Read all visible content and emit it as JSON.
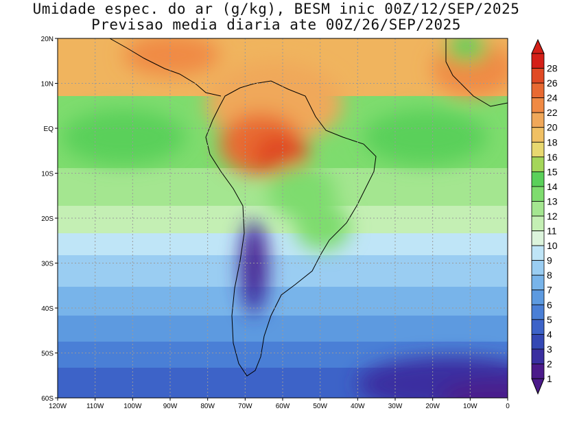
{
  "title": {
    "line1": "Umidade espec. do ar (g/kg), BESM inic 00Z/12/SEP/2025",
    "line2": "Previsao media diaria ate 00Z/26/SEP/2025"
  },
  "map": {
    "lat_labels": [
      "20N",
      "10N",
      "EQ",
      "10S",
      "20S",
      "30S",
      "40S",
      "50S",
      "60S"
    ],
    "lon_labels": [
      "120W",
      "110W",
      "100W",
      "90W",
      "80W",
      "70W",
      "60W",
      "50W",
      "40W",
      "30W",
      "20W",
      "10W",
      "0"
    ],
    "lat_range": [
      -60,
      20
    ],
    "lon_range": [
      -120,
      0
    ],
    "grid": true
  },
  "colorbar": {
    "labels": [
      "1",
      "2",
      "3",
      "4",
      "5",
      "6",
      "7",
      "8",
      "9",
      "10",
      "11",
      "12",
      "13",
      "14",
      "15",
      "16",
      "18",
      "20",
      "22",
      "24",
      "26",
      "28"
    ],
    "colors": [
      "#4b1a8a",
      "#3a2fa0",
      "#3448b4",
      "#3d63c8",
      "#4a7fd6",
      "#5d9ae0",
      "#78b4ea",
      "#9acdf2",
      "#bfe5f7",
      "#dcf4dc",
      "#c4efb4",
      "#a4e690",
      "#7edc6e",
      "#5ad05a",
      "#a4d65a",
      "#e8d870",
      "#f0c064",
      "#f0a85a",
      "#f08a44",
      "#e86a32",
      "#e04a24",
      "#d42018"
    ]
  }
}
